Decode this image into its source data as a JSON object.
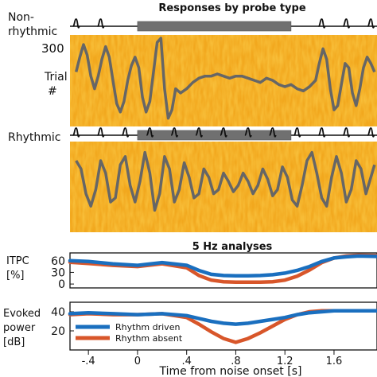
{
  "title_top": "Responses by probe type",
  "title_bottom": "5 Hz analyses",
  "labels": {
    "nonrhythmic_line1": "Non-",
    "nonrhythmic_line2": "rhythmic",
    "rhythmic": "Rhythmic",
    "trial_line1": "Trial",
    "trial_line2": "#",
    "trial_tick": "300",
    "itpc_line1": "ITPC",
    "itpc_line2": "[%]",
    "evoked_line1": "Evoked",
    "evoked_line2": "power",
    "evoked_line3": "[dB]",
    "xlabel": "Time from noise onset [s]"
  },
  "colors": {
    "heat_base": "#f0a020",
    "trace": "#666666",
    "bar": "#707070",
    "rhythm_driven": "#1a6fbf",
    "rhythm_absent": "#d8562a"
  },
  "chart_data": [
    {
      "type": "heatmap",
      "panel": "Non-rhythmic",
      "ylabel": "Trial #",
      "ytick": [
        300
      ],
      "xlim": [
        -0.55,
        1.95
      ],
      "noise_bar": [
        0.0,
        1.25
      ],
      "probe_times": [
        -0.5,
        -0.3,
        1.5,
        1.7,
        1.9
      ],
      "trace": {
        "x": [
          -0.5,
          -0.47,
          -0.44,
          -0.41,
          -0.38,
          -0.35,
          -0.32,
          -0.29,
          -0.26,
          -0.23,
          -0.2,
          -0.17,
          -0.14,
          -0.11,
          -0.08,
          -0.05,
          -0.02,
          0.01,
          0.04,
          0.07,
          0.1,
          0.13,
          0.16,
          0.19,
          0.22,
          0.25,
          0.28,
          0.31,
          0.35,
          0.4,
          0.45,
          0.5,
          0.55,
          0.6,
          0.65,
          0.7,
          0.75,
          0.8,
          0.85,
          0.9,
          0.95,
          1.0,
          1.05,
          1.1,
          1.15,
          1.2,
          1.25,
          1.3,
          1.35,
          1.4,
          1.45,
          1.48,
          1.51,
          1.54,
          1.57,
          1.6,
          1.63,
          1.66,
          1.69,
          1.72,
          1.75,
          1.78,
          1.81,
          1.84,
          1.87,
          1.9,
          1.93
        ],
        "y": [
          0.2,
          0.55,
          0.85,
          0.6,
          0.1,
          -0.2,
          0.1,
          0.5,
          0.8,
          0.55,
          0.0,
          -0.55,
          -0.75,
          -0.5,
          0.0,
          0.35,
          0.55,
          0.3,
          -0.4,
          -0.75,
          -0.5,
          0.2,
          0.9,
          1.0,
          -0.2,
          -0.9,
          -0.7,
          -0.2,
          -0.3,
          -0.2,
          -0.05,
          0.05,
          0.1,
          0.1,
          0.15,
          0.1,
          0.05,
          0.1,
          0.1,
          0.05,
          0.0,
          -0.05,
          0.05,
          0.0,
          -0.1,
          -0.15,
          -0.1,
          -0.2,
          -0.25,
          -0.15,
          0.0,
          0.4,
          0.75,
          0.5,
          -0.2,
          -0.7,
          -0.6,
          -0.1,
          0.4,
          0.3,
          -0.3,
          -0.6,
          -0.2,
          0.3,
          0.55,
          0.4,
          0.2
        ]
      }
    },
    {
      "type": "heatmap",
      "panel": "Rhythmic",
      "xlim": [
        -0.55,
        1.95
      ],
      "noise_bar": [
        0.0,
        1.25
      ],
      "probe_times": [
        -0.5,
        -0.3,
        -0.1,
        0.1,
        0.3,
        0.5,
        0.7,
        0.9,
        1.1,
        1.3,
        1.5,
        1.7,
        1.9
      ],
      "trace": {
        "x": [
          -0.5,
          -0.46,
          -0.42,
          -0.38,
          -0.34,
          -0.3,
          -0.26,
          -0.22,
          -0.18,
          -0.14,
          -0.1,
          -0.06,
          -0.02,
          0.02,
          0.06,
          0.1,
          0.14,
          0.18,
          0.22,
          0.26,
          0.3,
          0.34,
          0.38,
          0.42,
          0.46,
          0.5,
          0.54,
          0.58,
          0.62,
          0.66,
          0.7,
          0.74,
          0.78,
          0.82,
          0.86,
          0.9,
          0.94,
          0.98,
          1.02,
          1.06,
          1.1,
          1.14,
          1.18,
          1.22,
          1.26,
          1.3,
          1.34,
          1.38,
          1.42,
          1.46,
          1.5,
          1.54,
          1.58,
          1.62,
          1.66,
          1.7,
          1.74,
          1.78,
          1.82,
          1.86,
          1.9,
          1.93
        ],
        "y": [
          0.5,
          0.3,
          -0.3,
          -0.6,
          -0.2,
          0.5,
          0.2,
          -0.5,
          -0.4,
          0.4,
          0.6,
          -0.1,
          -0.5,
          0.0,
          0.7,
          0.2,
          -0.7,
          -0.3,
          0.6,
          0.3,
          -0.5,
          -0.2,
          0.45,
          0.1,
          -0.4,
          -0.3,
          0.3,
          0.1,
          -0.3,
          -0.2,
          0.2,
          0.0,
          -0.25,
          -0.1,
          0.2,
          0.0,
          -0.3,
          -0.1,
          0.3,
          0.05,
          -0.35,
          -0.2,
          0.35,
          0.1,
          -0.45,
          -0.6,
          -0.1,
          0.5,
          0.7,
          0.2,
          -0.4,
          -0.6,
          0.1,
          0.6,
          0.2,
          -0.5,
          -0.2,
          0.5,
          0.3,
          -0.3,
          0.1,
          0.4
        ]
      }
    },
    {
      "type": "line",
      "title": "5 Hz analyses",
      "ylabel": "ITPC [%]",
      "yticks": [
        0,
        30,
        60
      ],
      "ylim": [
        -10,
        80
      ],
      "xlim": [
        -0.55,
        1.95
      ],
      "x": [
        -0.55,
        -0.4,
        -0.2,
        0.0,
        0.2,
        0.4,
        0.5,
        0.6,
        0.7,
        0.8,
        0.9,
        1.0,
        1.1,
        1.2,
        1.3,
        1.4,
        1.5,
        1.6,
        1.7,
        1.8,
        1.95
      ],
      "series": [
        {
          "name": "Rhythm driven",
          "values": [
            60,
            58,
            52,
            48,
            55,
            48,
            35,
            25,
            22,
            21,
            21,
            22,
            24,
            28,
            35,
            45,
            58,
            67,
            70,
            72,
            71
          ]
        },
        {
          "name": "Rhythm absent",
          "values": [
            56,
            53,
            48,
            45,
            52,
            42,
            22,
            10,
            6,
            5,
            5,
            5,
            6,
            10,
            20,
            36,
            55,
            67,
            72,
            74,
            73
          ]
        }
      ]
    },
    {
      "type": "line",
      "ylabel": "Evoked power [dB]",
      "yticks": [
        20,
        40
      ],
      "ylim": [
        0,
        50
      ],
      "xlim": [
        -0.55,
        1.95
      ],
      "xticks": [
        -0.4,
        0,
        0.4,
        0.8,
        1.2,
        1.6
      ],
      "xticklabels": [
        "-.4",
        "0",
        ".4",
        ".8",
        "1.2",
        "1.6"
      ],
      "xlabel": "Time from noise onset [s]",
      "x": [
        -0.55,
        -0.4,
        -0.2,
        0.0,
        0.2,
        0.4,
        0.5,
        0.6,
        0.7,
        0.8,
        0.9,
        1.0,
        1.1,
        1.2,
        1.3,
        1.4,
        1.5,
        1.6,
        1.7,
        1.8,
        1.95
      ],
      "series": [
        {
          "name": "Rhythm driven",
          "values": [
            38,
            39,
            38,
            37,
            38,
            36,
            33,
            30,
            28,
            27,
            28,
            30,
            32,
            34,
            37,
            39,
            40,
            41,
            41,
            41,
            41
          ]
        },
        {
          "name": "Rhythm absent",
          "values": [
            37,
            38,
            37,
            37,
            38,
            34,
            27,
            19,
            12,
            8,
            12,
            18,
            25,
            32,
            37,
            40,
            41,
            41,
            41,
            41,
            41
          ]
        }
      ],
      "legend": [
        "Rhythm driven",
        "Rhythm absent"
      ],
      "legend_position": "bottom-left"
    }
  ]
}
